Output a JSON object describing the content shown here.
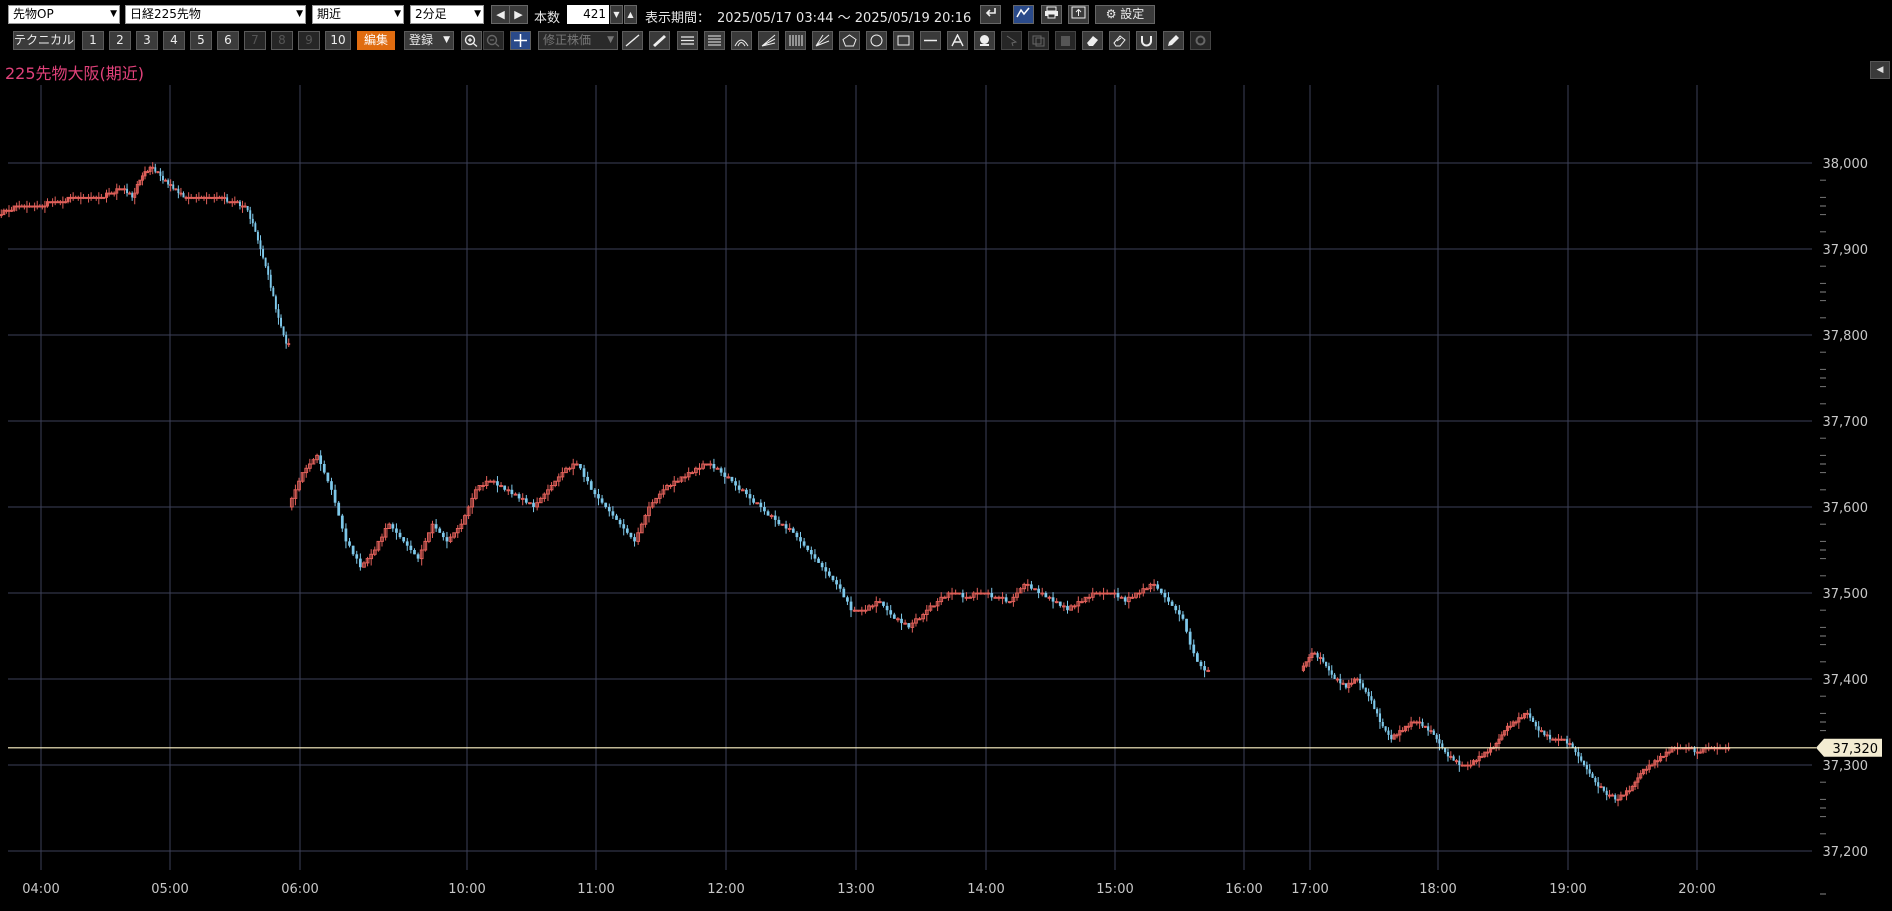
{
  "toolbar": {
    "market_select": "先物OP",
    "instrument_select": "日経225先物",
    "contract_select": "期近",
    "interval_select": "2分足",
    "count_label": "本数",
    "count_value": "421",
    "period_label": "表示期間：",
    "period_value": "2025/05/17 03:44 ～ 2025/05/19 20:16",
    "settings_label": "設定"
  },
  "toolbar2": {
    "technical_label": "テクニカル",
    "slots": [
      "1",
      "2",
      "3",
      "4",
      "5",
      "6",
      "7",
      "8",
      "9",
      "10"
    ],
    "edit_label": "編集",
    "register_label": "登録",
    "adjusted_label": "修正株価"
  },
  "series_title": "225先物大阪(期近)",
  "current_price_label": "37,320",
  "colors": {
    "up": "#e0605a",
    "down": "#7ec8ea",
    "price_line": "#fff5c8",
    "grid": "#3c4058",
    "title": "#e0417a",
    "accent": "#e06c10"
  },
  "chart_data": {
    "type": "candlestick",
    "title": "225先物大阪(期近)",
    "xlabel": "",
    "ylabel": "",
    "ylim": [
      37180,
      38100
    ],
    "y_ticks": [
      37200,
      37300,
      37400,
      37500,
      37600,
      37700,
      37800,
      37900,
      38000
    ],
    "y_tick_labels": [
      "37,200",
      "37,300",
      "37,400",
      "37,500",
      "37,600",
      "37,700",
      "37,800",
      "37,900",
      "38,000"
    ],
    "x_ticks": [
      "04:00",
      "05:00",
      "06:00",
      "10:00",
      "11:00",
      "12:00",
      "13:00",
      "14:00",
      "15:00",
      "16:00",
      "17:00",
      "18:00",
      "19:00",
      "20:00"
    ],
    "current_price": 37320,
    "grid": true,
    "segments": [
      {
        "session": "night",
        "start": "03:44",
        "end": "06:00",
        "anchors": [
          [
            0,
            37940
          ],
          [
            8,
            37950
          ],
          [
            15,
            37950
          ],
          [
            22,
            37955
          ],
          [
            32,
            37960
          ],
          [
            40,
            37960
          ],
          [
            48,
            37970
          ],
          [
            52,
            37960
          ],
          [
            56,
            37985
          ],
          [
            60,
            37995
          ],
          [
            64,
            37980
          ],
          [
            68,
            37970
          ],
          [
            72,
            37962
          ],
          [
            80,
            37958
          ],
          [
            88,
            37958
          ],
          [
            96,
            37950
          ],
          [
            100,
            37920
          ],
          [
            104,
            37880
          ],
          [
            108,
            37830
          ],
          [
            112,
            37790
          ]
        ]
      },
      {
        "session": "day",
        "start": "09:00",
        "end": "15:45",
        "anchors": [
          [
            0,
            37600
          ],
          [
            4,
            37640
          ],
          [
            8,
            37660
          ],
          [
            12,
            37620
          ],
          [
            16,
            37560
          ],
          [
            20,
            37530
          ],
          [
            24,
            37550
          ],
          [
            28,
            37580
          ],
          [
            32,
            37560
          ],
          [
            36,
            37540
          ],
          [
            40,
            37580
          ],
          [
            44,
            37560
          ],
          [
            48,
            37580
          ],
          [
            52,
            37620
          ],
          [
            56,
            37630
          ],
          [
            60,
            37620
          ],
          [
            64,
            37610
          ],
          [
            68,
            37600
          ],
          [
            72,
            37620
          ],
          [
            76,
            37640
          ],
          [
            80,
            37650
          ],
          [
            84,
            37620
          ],
          [
            88,
            37600
          ],
          [
            92,
            37580
          ],
          [
            96,
            37560
          ],
          [
            100,
            37600
          ],
          [
            104,
            37620
          ],
          [
            108,
            37630
          ],
          [
            112,
            37640
          ],
          [
            116,
            37650
          ],
          [
            120,
            37640
          ],
          [
            124,
            37625
          ],
          [
            128,
            37610
          ],
          [
            132,
            37595
          ],
          [
            136,
            37580
          ],
          [
            140,
            37570
          ],
          [
            144,
            37550
          ],
          [
            148,
            37530
          ],
          [
            152,
            37510
          ],
          [
            156,
            37480
          ],
          [
            160,
            37480
          ],
          [
            164,
            37490
          ],
          [
            168,
            37470
          ],
          [
            172,
            37460
          ],
          [
            176,
            37475
          ],
          [
            180,
            37490
          ],
          [
            184,
            37500
          ],
          [
            188,
            37495
          ],
          [
            192,
            37500
          ],
          [
            196,
            37495
          ],
          [
            200,
            37490
          ],
          [
            204,
            37510
          ],
          [
            208,
            37500
          ],
          [
            212,
            37490
          ],
          [
            216,
            37480
          ],
          [
            220,
            37490
          ],
          [
            224,
            37500
          ],
          [
            228,
            37500
          ],
          [
            232,
            37490
          ],
          [
            236,
            37500
          ],
          [
            240,
            37510
          ],
          [
            244,
            37490
          ],
          [
            248,
            37470
          ],
          [
            250,
            37440
          ],
          [
            252,
            37420
          ],
          [
            254,
            37408
          ]
        ]
      },
      {
        "session": "evening",
        "start": "16:45",
        "end": "20:16",
        "anchors": [
          [
            0,
            37410
          ],
          [
            4,
            37430
          ],
          [
            8,
            37420
          ],
          [
            12,
            37400
          ],
          [
            16,
            37390
          ],
          [
            20,
            37400
          ],
          [
            24,
            37380
          ],
          [
            28,
            37350
          ],
          [
            32,
            37330
          ],
          [
            36,
            37340
          ],
          [
            40,
            37350
          ],
          [
            44,
            37345
          ],
          [
            48,
            37330
          ],
          [
            52,
            37310
          ],
          [
            56,
            37300
          ],
          [
            60,
            37300
          ],
          [
            64,
            37310
          ],
          [
            68,
            37320
          ],
          [
            72,
            37340
          ],
          [
            76,
            37350
          ],
          [
            80,
            37360
          ],
          [
            84,
            37340
          ],
          [
            88,
            37330
          ],
          [
            92,
            37330
          ],
          [
            96,
            37320
          ],
          [
            100,
            37300
          ],
          [
            104,
            37280
          ],
          [
            108,
            37265
          ],
          [
            112,
            37260
          ],
          [
            116,
            37270
          ],
          [
            120,
            37290
          ],
          [
            124,
            37300
          ],
          [
            128,
            37310
          ],
          [
            132,
            37320
          ],
          [
            136,
            37320
          ],
          [
            140,
            37315
          ],
          [
            144,
            37320
          ],
          [
            148,
            37320
          ],
          [
            150,
            37318
          ]
        ]
      }
    ]
  }
}
